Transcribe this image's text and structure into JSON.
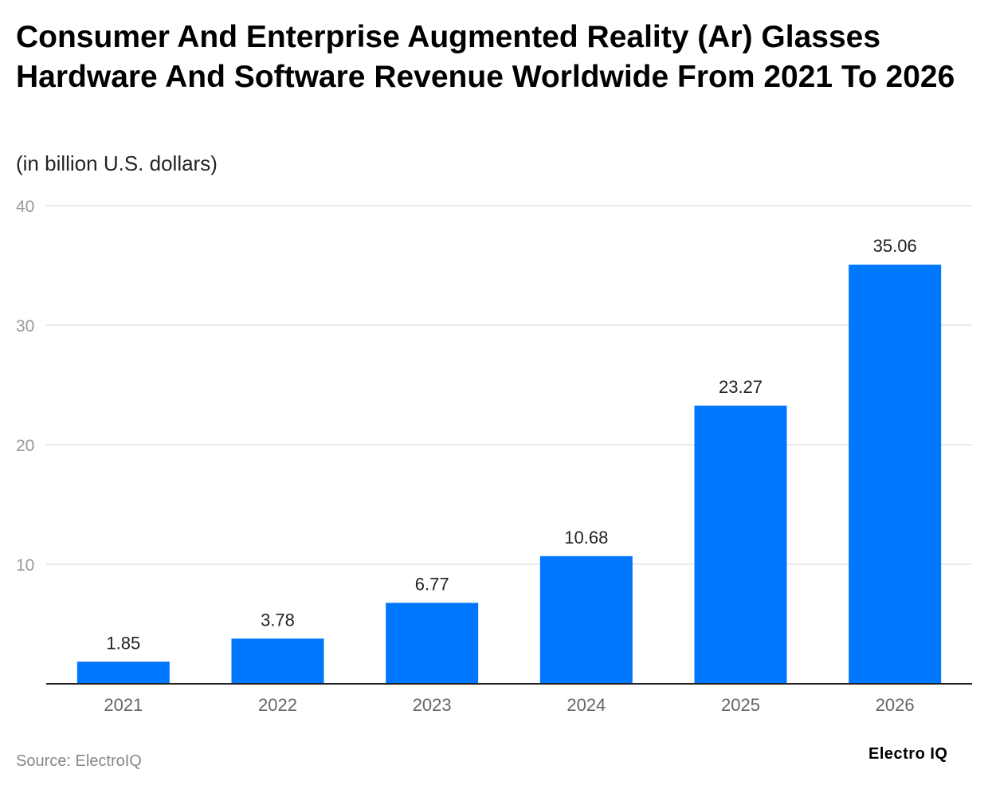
{
  "chart_data": {
    "type": "bar",
    "title": "Consumer And Enterprise Augmented Reality (Ar) Glasses Hardware And Software Revenue Worldwide From 2021 To 2026",
    "subtitle": "(in billion U.S. dollars)",
    "categories": [
      "2021",
      "2022",
      "2023",
      "2024",
      "2025",
      "2026"
    ],
    "values": [
      1.85,
      3.78,
      6.77,
      10.68,
      23.27,
      35.06
    ],
    "value_labels": [
      "1.85",
      "3.78",
      "6.77",
      "10.68",
      "23.27",
      "35.06"
    ],
    "yticks": [
      10,
      20,
      30,
      40
    ],
    "ylim": [
      0,
      40
    ],
    "grid": true,
    "bar_color": "#0077ff",
    "xlabel": "",
    "ylabel": ""
  },
  "footer": {
    "source": "Source: ElectroIQ",
    "logo": "Electro IQ"
  }
}
